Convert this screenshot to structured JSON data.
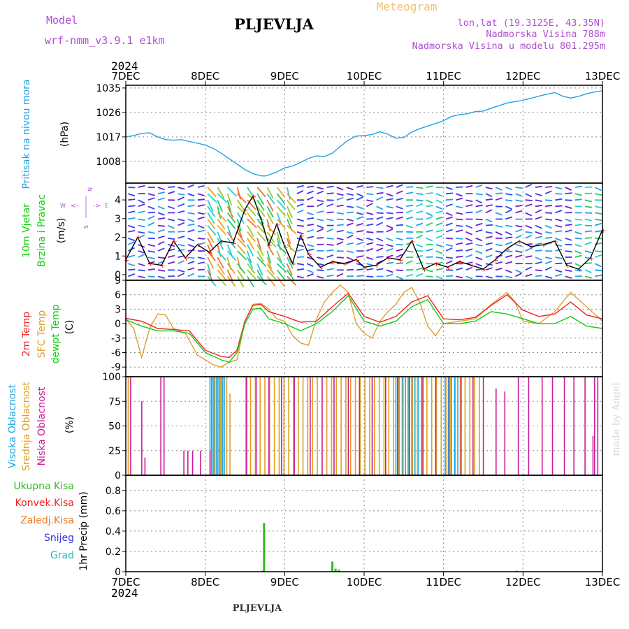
{
  "header": {
    "model_label": "Model",
    "model_name": "wrf-nmm_v3.9.1 e1km",
    "station": "PLJEVLJA",
    "product": "Meteogram",
    "coords": "lon,lat (19.3125E, 43.35N)",
    "elevation": "Nadmorska Visina 788m",
    "model_elevation": "Nadmorska Visina u modelu 801.295m",
    "footer_station": "PLJEVLJA",
    "credit": "made by Angel"
  },
  "colors": {
    "pressure": "#1fa3e6",
    "temp2m": "#ee2222",
    "sfc_temp": "#daa030",
    "dewpt": "#11cc11",
    "cloud_high": "#22a7e0",
    "cloud_mid": "#e0a020",
    "cloud_low": "#cc1a99",
    "precip_total": "#33bb22",
    "convective": "#ee2222",
    "freezing": "#f07828",
    "snow": "#3333ee",
    "hail": "#22bbbb",
    "model_text": "#b04fd0",
    "product_text": "#f0c070"
  },
  "chart_data": [
    {
      "type": "line",
      "title": "",
      "ylabel": [
        "Pritisak na nivou mora",
        "(hPa)"
      ],
      "ylim": [
        1000,
        1036
      ],
      "yticks": [
        1008,
        1017,
        1026,
        1035
      ],
      "x_top_year": "2024",
      "x_bottom_year": "2024",
      "xticks": [
        "7DEC",
        "8DEC",
        "9DEC",
        "10DEC",
        "11DEC",
        "12DEC",
        "13DEC"
      ],
      "grid": true,
      "series": [
        {
          "name": "",
          "x": [
            0,
            0.1,
            0.2,
            0.3,
            0.4,
            0.5,
            0.6,
            0.7,
            0.8,
            0.9,
            1.0,
            1.1,
            1.2,
            1.3,
            1.4,
            1.5,
            1.6,
            1.7,
            1.75,
            1.8,
            1.9,
            2.0,
            2.1,
            2.2,
            2.3,
            2.4,
            2.5,
            2.6,
            2.7,
            2.8,
            2.9,
            3.0,
            3.1,
            3.2,
            3.3,
            3.4,
            3.5,
            3.6,
            3.7,
            3.8,
            3.9,
            4.0,
            4.1,
            4.2,
            4.3,
            4.4,
            4.5,
            4.6,
            4.7,
            4.8,
            4.9,
            5.0,
            5.1,
            5.2,
            5.3,
            5.4,
            5.5,
            5.6,
            5.7,
            5.8,
            5.9,
            6.0
          ],
          "values": [
            1017,
            1017.5,
            1018.3,
            1018.5,
            1017,
            1016,
            1015.8,
            1016,
            1015.3,
            1014.7,
            1014,
            1012.8,
            1011,
            1009,
            1007,
            1005,
            1003.5,
            1002.7,
            1002.6,
            1003,
            1004.1,
            1005.6,
            1006.3,
            1007.6,
            1009.1,
            1010,
            1009.8,
            1011,
            1013.5,
            1015.8,
            1017.3,
            1017.5,
            1017.9,
            1018.9,
            1018,
            1016.5,
            1016.8,
            1018.8,
            1020,
            1021,
            1021.9,
            1023,
            1024.5,
            1025.2,
            1025.5,
            1026.3,
            1026.5,
            1027.6,
            1028.5,
            1029.5,
            1030,
            1030.5,
            1031.2,
            1032,
            1032.7,
            1033.3,
            1032,
            1031.3,
            1031.9,
            1032.9,
            1033.5,
            1034
          ]
        }
      ]
    },
    {
      "type": "vector",
      "ylabel": [
        "10m Vjetar",
        "Brzina i Pravac",
        "(m/s)"
      ],
      "ylim": [
        -0.3,
        4.9
      ],
      "yticks": [
        0,
        1,
        2,
        3,
        4
      ],
      "compass": {
        "n": "N",
        "s": "S",
        "e": "E",
        "w": "W"
      },
      "series": [
        {
          "name": "speed",
          "x": [
            0,
            0.15,
            0.3,
            0.45,
            0.6,
            0.75,
            0.9,
            1.05,
            1.2,
            1.35,
            1.5,
            1.6,
            1.7,
            1.8,
            1.9,
            2.0,
            2.1,
            2.2,
            2.3,
            2.45,
            2.6,
            2.75,
            2.9,
            3.0,
            3.15,
            3.3,
            3.45,
            3.6,
            3.75,
            3.9,
            4.05,
            4.2,
            4.35,
            4.5,
            4.65,
            4.8,
            4.95,
            5.1,
            5.25,
            5.4,
            5.55,
            5.7,
            5.85,
            6.0
          ],
          "values": [
            0.8,
            2.0,
            0.6,
            0.5,
            1.8,
            0.9,
            1.6,
            1.2,
            1.8,
            1.7,
            3.5,
            4.2,
            3.0,
            1.6,
            2.7,
            1.5,
            0.6,
            2.1,
            1.1,
            0.4,
            0.7,
            0.6,
            0.8,
            0.4,
            0.5,
            0.9,
            0.8,
            1.8,
            0.3,
            0.6,
            0.4,
            0.7,
            0.5,
            0.3,
            0.8,
            1.4,
            1.8,
            1.5,
            1.6,
            1.8,
            0.5,
            0.3,
            0.9,
            2.4
          ]
        }
      ]
    },
    {
      "type": "line",
      "ylabel": [
        "2m Temp",
        "SFC Temp",
        "dewpt Temp",
        "(C)"
      ],
      "ylim": [
        -11,
        9
      ],
      "yticks": [
        -9,
        -6,
        -3,
        0,
        3,
        6,
        9
      ],
      "series": [
        {
          "name": "2m Temp",
          "x": [
            0,
            0.2,
            0.4,
            0.6,
            0.8,
            1.0,
            1.2,
            1.3,
            1.4,
            1.5,
            1.6,
            1.7,
            1.8,
            2.0,
            2.2,
            2.4,
            2.6,
            2.8,
            3.0,
            3.2,
            3.4,
            3.6,
            3.8,
            4.0,
            4.2,
            4.4,
            4.6,
            4.8,
            5.0,
            5.2,
            5.4,
            5.6,
            5.8,
            6.0
          ],
          "values": [
            1.1,
            0.5,
            -1.0,
            -1.2,
            -1.5,
            -5.5,
            -6.8,
            -7.0,
            -5.5,
            0.5,
            3.8,
            4.0,
            2.5,
            1.5,
            0.3,
            0.5,
            3.5,
            6.3,
            1.5,
            0.3,
            1.5,
            4.5,
            5.8,
            1.0,
            0.8,
            1.3,
            3.8,
            6.0,
            2.8,
            1.5,
            2.0,
            4.5,
            1.8,
            1.0
          ]
        },
        {
          "name": "SFC Temp",
          "x": [
            0,
            0.1,
            0.2,
            0.3,
            0.4,
            0.5,
            0.6,
            0.75,
            0.9,
            1.0,
            1.1,
            1.2,
            1.3,
            1.4,
            1.5,
            1.6,
            1.7,
            1.8,
            1.9,
            2.0,
            2.1,
            2.2,
            2.3,
            2.4,
            2.5,
            2.6,
            2.7,
            2.8,
            2.9,
            3.0,
            3.1,
            3.2,
            3.3,
            3.4,
            3.5,
            3.6,
            3.7,
            3.8,
            3.9,
            4.0,
            4.2,
            4.4,
            4.6,
            4.8,
            4.9,
            5.0,
            5.2,
            5.4,
            5.6,
            5.8,
            6.0
          ],
          "values": [
            1.0,
            -1.0,
            -7.0,
            -1.0,
            2.0,
            1.8,
            -1.0,
            -2.0,
            -6.5,
            -7.5,
            -8.5,
            -9.0,
            -8.0,
            -7.5,
            0.5,
            4.0,
            4.2,
            3.0,
            1.0,
            0.5,
            -2.5,
            -4.0,
            -4.5,
            1.0,
            4.5,
            6.5,
            8.0,
            6.5,
            0.0,
            -2.0,
            -3.0,
            0.5,
            2.5,
            4.0,
            6.5,
            7.5,
            4.5,
            -0.5,
            -2.5,
            0.0,
            0.5,
            1.0,
            4.0,
            6.5,
            4.5,
            0.5,
            0.0,
            2.5,
            6.5,
            3.5,
            0.5
          ]
        },
        {
          "name": "dewpt Temp",
          "x": [
            0,
            0.2,
            0.4,
            0.6,
            0.8,
            1.0,
            1.2,
            1.3,
            1.4,
            1.5,
            1.6,
            1.7,
            1.8,
            2.0,
            2.2,
            2.4,
            2.6,
            2.8,
            3.0,
            3.2,
            3.4,
            3.6,
            3.8,
            4.0,
            4.2,
            4.4,
            4.6,
            4.8,
            5.0,
            5.2,
            5.4,
            5.6,
            5.8,
            6.0
          ],
          "values": [
            0.8,
            -0.5,
            -1.5,
            -1.5,
            -2.0,
            -6.0,
            -7.5,
            -8.0,
            -6.0,
            0.0,
            3.0,
            3.2,
            1.0,
            0.0,
            -1.5,
            0.0,
            2.5,
            5.8,
            0.5,
            -0.5,
            0.5,
            3.5,
            5.0,
            0.0,
            0.0,
            0.5,
            2.5,
            2.0,
            1.0,
            0.0,
            0.0,
            1.5,
            -0.5,
            -1.0
          ]
        }
      ]
    },
    {
      "type": "bar",
      "ylabel": [
        "Visoka Oblacnost",
        "Srednja Oblacnost",
        "Niska Oblacnost",
        "(%)"
      ],
      "ylim": [
        0,
        100
      ],
      "yticks": [
        0,
        25,
        50,
        75,
        100
      ],
      "series": [
        {
          "name": "Visoka Oblacnost",
          "x": [
            1.06,
            1.08,
            1.1,
            1.12,
            1.14,
            1.16,
            1.18,
            1.2,
            1.22,
            1.24,
            3.4,
            3.44,
            3.48,
            3.52,
            3.56,
            3.6,
            3.64,
            3.68,
            3.72,
            4.02,
            4.06,
            4.1,
            4.14,
            4.18
          ],
          "values": [
            100,
            100,
            100,
            100,
            100,
            100,
            100,
            100,
            100,
            100,
            100,
            100,
            100,
            100,
            100,
            100,
            100,
            100,
            100,
            100,
            100,
            100,
            100,
            100
          ]
        },
        {
          "name": "Srednja Oblacnost",
          "x": [
            0.02,
            1.1,
            1.18,
            1.26,
            1.3,
            1.5,
            1.56,
            1.62,
            1.68,
            1.74,
            1.8,
            1.86,
            1.92,
            1.98,
            2.04,
            2.1,
            2.16,
            2.22,
            2.28,
            2.34,
            2.4,
            2.46,
            2.52,
            2.58,
            2.64,
            2.7,
            2.76,
            2.82,
            2.88,
            2.94,
            3.0,
            3.06,
            3.12,
            3.18,
            3.24,
            3.3,
            3.36,
            3.42,
            3.48,
            3.54,
            3.6,
            3.66,
            3.72,
            3.78,
            3.84,
            3.9,
            3.96,
            4.02,
            4.08,
            4.14,
            4.2,
            4.26,
            4.32,
            4.38,
            4.44
          ],
          "values": [
            100,
            100,
            100,
            100,
            83,
            100,
            100,
            100,
            100,
            100,
            100,
            100,
            100,
            100,
            100,
            100,
            100,
            100,
            100,
            100,
            100,
            100,
            100,
            100,
            100,
            100,
            100,
            100,
            100,
            100,
            100,
            100,
            100,
            100,
            100,
            100,
            100,
            100,
            100,
            100,
            100,
            100,
            100,
            100,
            100,
            100,
            100,
            100,
            100,
            100,
            100,
            100,
            100,
            100,
            100
          ]
        },
        {
          "name": "Niska Oblacnost",
          "x": [
            0.04,
            0.18,
            0.22,
            0.42,
            0.46,
            0.71,
            0.76,
            0.82,
            0.92,
            1.04,
            1.5,
            1.62,
            1.78,
            1.94,
            2.1,
            2.3,
            2.45,
            2.6,
            2.78,
            2.92,
            3.08,
            3.25,
            3.4,
            3.55,
            3.72,
            3.88,
            4.05,
            4.2,
            4.35,
            4.48,
            4.64,
            4.75,
            4.92,
            5.05,
            5.22,
            5.35,
            5.5,
            5.62,
            5.76,
            5.86,
            5.88,
            5.92
          ],
          "values": [
            100,
            75,
            18,
            100,
            100,
            25,
            25,
            25,
            25,
            25,
            100,
            100,
            100,
            100,
            100,
            100,
            100,
            100,
            100,
            100,
            100,
            100,
            100,
            100,
            100,
            100,
            100,
            100,
            100,
            100,
            88,
            85,
            100,
            100,
            100,
            100,
            100,
            100,
            100,
            40,
            100,
            100
          ]
        }
      ]
    },
    {
      "type": "bar",
      "ylabel": [
        "1hr Precip (mm)"
      ],
      "ylim": [
        0,
        0.95
      ],
      "yticks": [
        0,
        0.2,
        0.4,
        0.6,
        0.8
      ],
      "legend": [
        "Ukupna Kisa",
        "Konvek.Kisa",
        "Zaledj.Kisa",
        "Snijeg",
        "Grad"
      ],
      "series": [
        {
          "name": "Ukupna Kisa",
          "x": [
            1.72,
            1.74,
            2.6,
            2.64,
            2.68,
            4.92
          ],
          "values": [
            0.01,
            0.48,
            0.1,
            0.03,
            0.02,
            0.01
          ]
        }
      ]
    }
  ]
}
